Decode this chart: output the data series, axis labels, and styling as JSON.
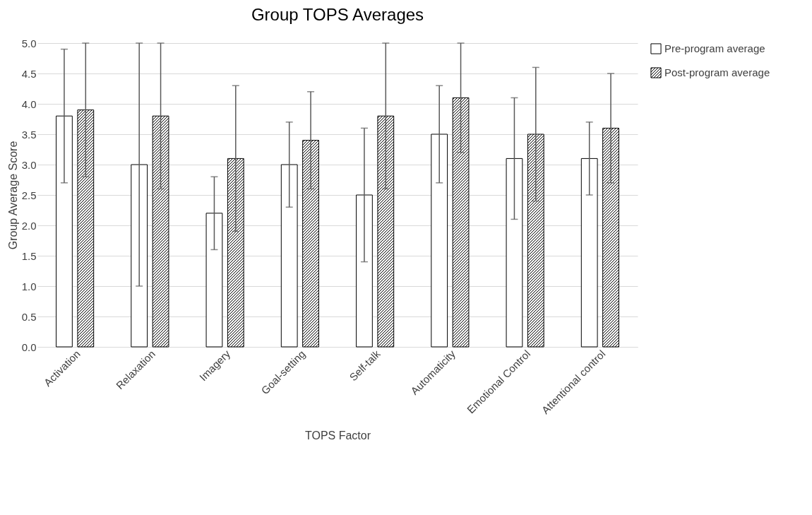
{
  "chart_data": {
    "type": "bar",
    "title": "Group TOPS Averages",
    "xlabel": "TOPS Factor",
    "ylabel": "Group Average Score",
    "categories": [
      "Activation",
      "Relaxation",
      "Imagery",
      "Goal-setting",
      "Self-talk",
      "Automaticity",
      "Emotional Control",
      "Attentional control"
    ],
    "series": [
      {
        "name": "Pre-program average",
        "color": "#ffffff",
        "values": [
          3.8,
          3.0,
          2.2,
          3.0,
          2.5,
          3.5,
          3.1,
          3.1
        ],
        "errors": [
          [
            2.7,
            4.9
          ],
          [
            1.0,
            5.0
          ],
          [
            1.6,
            2.8
          ],
          [
            2.3,
            3.7
          ],
          [
            1.4,
            3.6
          ],
          [
            2.7,
            4.3
          ],
          [
            2.1,
            4.1
          ],
          [
            2.5,
            3.7
          ]
        ]
      },
      {
        "name": "Post-program average",
        "color": "#000000",
        "values": [
          3.9,
          3.8,
          3.1,
          3.4,
          3.8,
          4.1,
          3.5,
          3.6
        ],
        "errors": [
          [
            2.8,
            5.0
          ],
          [
            2.6,
            5.0
          ],
          [
            1.9,
            4.3
          ],
          [
            2.6,
            4.2
          ],
          [
            2.6,
            5.0
          ],
          [
            3.2,
            5.0
          ],
          [
            2.4,
            4.6
          ],
          [
            2.7,
            4.5
          ]
        ]
      }
    ],
    "ylim": [
      0,
      5
    ],
    "yticks": [
      {
        "value": 0,
        "label": "0.0"
      },
      {
        "value": 0.5,
        "label": "0.5"
      },
      {
        "value": 1,
        "label": "1.0"
      },
      {
        "value": 1.5,
        "label": "1.5"
      },
      {
        "value": 2,
        "label": "2.0"
      },
      {
        "value": 2.5,
        "label": "2.5"
      },
      {
        "value": 3,
        "label": "3.0"
      },
      {
        "value": 3.5,
        "label": "3.5"
      },
      {
        "value": 4,
        "label": "4.0"
      },
      {
        "value": 4.5,
        "label": "4.5"
      },
      {
        "value": 5,
        "label": "5.0"
      }
    ],
    "grid": "y",
    "legend": "right"
  }
}
